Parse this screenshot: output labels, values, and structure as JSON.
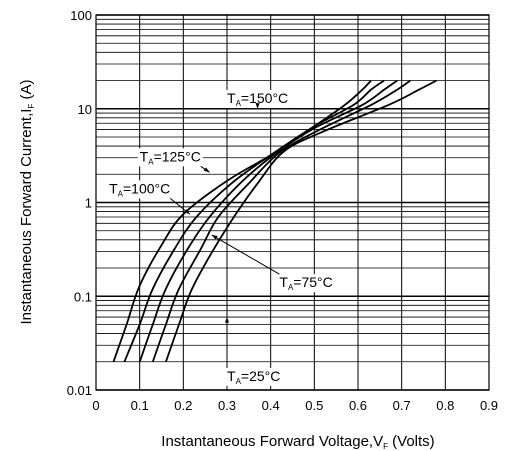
{
  "chart_data": {
    "type": "line",
    "xlabel": "Instantaneous Forward Voltage,V",
    "xlabel_sub": "F",
    "xlabel_suffix": " (Volts)",
    "ylabel": "Instantaneous Forward Current,I",
    "ylabel_sub": "F",
    "ylabel_suffix": " (A)",
    "xlim": [
      0,
      0.9
    ],
    "ylim": [
      0.01,
      100
    ],
    "yscale": "log",
    "grid": true,
    "x_ticks": [
      0,
      0.1,
      0.2,
      0.3,
      0.4,
      0.5,
      0.6,
      0.7,
      0.8,
      0.9
    ],
    "x_tick_labels": [
      "0",
      "0.1",
      "0.2",
      "0.3",
      "0.4",
      "0.5",
      "0.6",
      "0.7",
      "0.8",
      "0.9"
    ],
    "y_ticks": [
      0.01,
      0.1,
      1,
      10,
      100
    ],
    "y_tick_labels": [
      "0.01",
      "0.1",
      "1",
      "10",
      "100"
    ],
    "series": [
      {
        "name": "T_A=150°C",
        "label_prefix": "T",
        "label_sub": "A",
        "label_rest": "=150°C",
        "points": [
          [
            0.04,
            0.02
          ],
          [
            0.07,
            0.05
          ],
          [
            0.1,
            0.13
          ],
          [
            0.15,
            0.35
          ],
          [
            0.2,
            0.75
          ],
          [
            0.3,
            1.7
          ],
          [
            0.4,
            3.2
          ],
          [
            0.5,
            6.5
          ],
          [
            0.57,
            11
          ],
          [
            0.61,
            16
          ],
          [
            0.63,
            20
          ]
        ]
      },
      {
        "name": "T_A=125°C",
        "label_prefix": "T",
        "label_sub": "A",
        "label_rest": "=125°C",
        "points": [
          [
            0.065,
            0.02
          ],
          [
            0.1,
            0.05
          ],
          [
            0.13,
            0.12
          ],
          [
            0.18,
            0.32
          ],
          [
            0.23,
            0.7
          ],
          [
            0.31,
            1.6
          ],
          [
            0.4,
            3.2
          ],
          [
            0.5,
            6.5
          ],
          [
            0.59,
            11
          ],
          [
            0.63,
            16
          ],
          [
            0.66,
            20
          ]
        ]
      },
      {
        "name": "T_A=100°C",
        "label_prefix": "T",
        "label_sub": "A",
        "label_rest": "=100°C",
        "points": [
          [
            0.1,
            0.02
          ],
          [
            0.13,
            0.05
          ],
          [
            0.16,
            0.12
          ],
          [
            0.21,
            0.32
          ],
          [
            0.26,
            0.7
          ],
          [
            0.33,
            1.6
          ],
          [
            0.41,
            3.3
          ],
          [
            0.5,
            6.2
          ],
          [
            0.61,
            11
          ],
          [
            0.66,
            16
          ],
          [
            0.69,
            20
          ]
        ]
      },
      {
        "name": "T_A=75°C",
        "label_prefix": "T",
        "label_sub": "A",
        "label_rest": "=75°C",
        "points": [
          [
            0.13,
            0.02
          ],
          [
            0.16,
            0.05
          ],
          [
            0.19,
            0.12
          ],
          [
            0.24,
            0.32
          ],
          [
            0.28,
            0.7
          ],
          [
            0.35,
            1.6
          ],
          [
            0.42,
            3.4
          ],
          [
            0.51,
            5.9
          ],
          [
            0.63,
            11
          ],
          [
            0.69,
            16
          ],
          [
            0.72,
            20
          ]
        ]
      },
      {
        "name": "T_A=25°C",
        "label_prefix": "T",
        "label_sub": "A",
        "label_rest": "=25°C",
        "points": [
          [
            0.16,
            0.02
          ],
          [
            0.19,
            0.05
          ],
          [
            0.22,
            0.12
          ],
          [
            0.27,
            0.32
          ],
          [
            0.32,
            0.75
          ],
          [
            0.37,
            1.6
          ],
          [
            0.43,
            3.5
          ],
          [
            0.52,
            5.7
          ],
          [
            0.67,
            11
          ],
          [
            0.74,
            16
          ],
          [
            0.78,
            20
          ]
        ]
      }
    ],
    "annotations": [
      {
        "series": 0,
        "label_x": 0.3,
        "label_y": 11.5,
        "arrow_to": [
          0.37,
          10
        ]
      },
      {
        "series": 1,
        "label_x": 0.1,
        "label_y": 2.75,
        "arrow_to": [
          0.26,
          2.1
        ]
      },
      {
        "series": 2,
        "label_x": 0.03,
        "label_y": 1.25,
        "arrow_to": [
          0.215,
          0.75
        ]
      },
      {
        "series": 3,
        "label_x": 0.42,
        "label_y": 0.125,
        "arrow_to": [
          0.265,
          0.45
        ]
      },
      {
        "series": 4,
        "label_x": 0.3,
        "label_y": 0.0125,
        "arrow_to": [
          0.3,
          0.06
        ]
      }
    ]
  }
}
